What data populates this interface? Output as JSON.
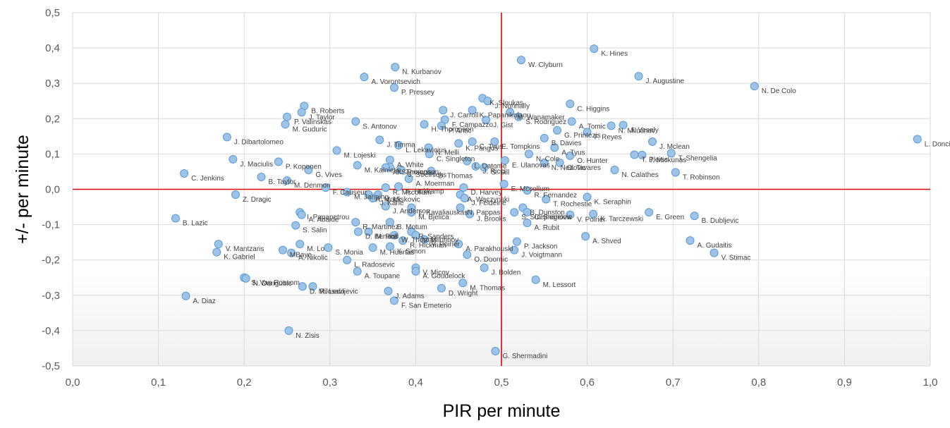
{
  "chart_data": {
    "type": "scatter",
    "title": "",
    "xlabel": "PIR per minute",
    "ylabel": "+/- per minute",
    "xlim": [
      0,
      1
    ],
    "ylim": [
      -0.5,
      0.5
    ],
    "x_ticks": [
      "0,0",
      "0,1",
      "0,2",
      "0,3",
      "0,4",
      "0,5",
      "0,6",
      "0,7",
      "0,8",
      "0,9",
      "1,0"
    ],
    "y_ticks": [
      "0,5",
      "0,4",
      "0,3",
      "0,2",
      "0,1",
      "0,0",
      "-0,1",
      "-0,2",
      "-0,3",
      "-0,4",
      "-0,5"
    ],
    "grid": true,
    "reference_lines": {
      "x": 0.5,
      "y": 0.0,
      "color": "#e00000"
    },
    "colors": {
      "marker_fill": "#9dc3e6",
      "marker_stroke": "#5b9bd5",
      "grid": "#d9d9d9",
      "label": "#404040",
      "lower_band": "#f2f2f2"
    },
    "points": [
      {
        "label": "K. Hines",
        "x": 0.608,
        "y": 0.398
      },
      {
        "label": "W. Clyburn",
        "x": 0.523,
        "y": 0.366
      },
      {
        "label": "N. Kurbanov",
        "x": 0.376,
        "y": 0.346
      },
      {
        "label": "A. Vorontsevich",
        "x": 0.34,
        "y": 0.318
      },
      {
        "label": "J. Augustine",
        "x": 0.66,
        "y": 0.32
      },
      {
        "label": "N. De Colo",
        "x": 0.795,
        "y": 0.292
      },
      {
        "label": "P. Pressey",
        "x": 0.375,
        "y": 0.288
      },
      {
        "label": "K. Sloukas",
        "x": 0.478,
        "y": 0.258
      },
      {
        "label": "J. Nunnally",
        "x": 0.484,
        "y": 0.25
      },
      {
        "label": "C. Higgins",
        "x": 0.58,
        "y": 0.242
      },
      {
        "label": "B. Roberts",
        "x": 0.27,
        "y": 0.236
      },
      {
        "label": "J. Carroll",
        "x": 0.432,
        "y": 0.224
      },
      {
        "label": "K. Papanikolaou",
        "x": 0.466,
        "y": 0.224
      },
      {
        "label": "P. Valinskas",
        "x": 0.25,
        "y": 0.205
      },
      {
        "label": "J. Taylor",
        "x": 0.267,
        "y": 0.218
      },
      {
        "label": "M. Wanamaker",
        "x": 0.51,
        "y": 0.218
      },
      {
        "label": "S. Rodriguez",
        "x": 0.52,
        "y": 0.205
      },
      {
        "label": "F. Campazzo",
        "x": 0.434,
        "y": 0.197
      },
      {
        "label": "J. Gist",
        "x": 0.482,
        "y": 0.196
      },
      {
        "label": "A. Tomic",
        "x": 0.582,
        "y": 0.192
      },
      {
        "label": "S. Antonov",
        "x": 0.33,
        "y": 0.192
      },
      {
        "label": "M. Guduric",
        "x": 0.248,
        "y": 0.184
      },
      {
        "label": "P. Antic",
        "x": 0.43,
        "y": 0.18
      },
      {
        "label": "N. Milutinov",
        "x": 0.628,
        "y": 0.18
      },
      {
        "label": "J. Vesely",
        "x": 0.642,
        "y": 0.182
      },
      {
        "label": "H. Thompson",
        "x": 0.41,
        "y": 0.184
      },
      {
        "label": "G. Printezis",
        "x": 0.565,
        "y": 0.167
      },
      {
        "label": "F. Reyes",
        "x": 0.6,
        "y": 0.162
      },
      {
        "label": "J. Dibartolomeo",
        "x": 0.18,
        "y": 0.148
      },
      {
        "label": "J. Timma",
        "x": 0.358,
        "y": 0.14
      },
      {
        "label": "B. Davies",
        "x": 0.55,
        "y": 0.145
      },
      {
        "label": "J. Mclean",
        "x": 0.676,
        "y": 0.135
      },
      {
        "label": "L. Doncic",
        "x": 0.985,
        "y": 0.142
      },
      {
        "label": "C. Tyus",
        "x": 0.466,
        "y": 0.135
      },
      {
        "label": "E. Tompkins",
        "x": 0.492,
        "y": 0.135
      },
      {
        "label": "K. Pangos",
        "x": 0.45,
        "y": 0.13
      },
      {
        "label": "L. Lekavicius",
        "x": 0.38,
        "y": 0.125
      },
      {
        "label": "N. Melli",
        "x": 0.415,
        "y": 0.118
      },
      {
        "label": "A. Tyus",
        "x": 0.562,
        "y": 0.118
      },
      {
        "label": "M. Lojeski",
        "x": 0.308,
        "y": 0.11
      },
      {
        "label": "C. Singleton",
        "x": 0.416,
        "y": 0.1
      },
      {
        "label": "N. Cole",
        "x": 0.532,
        "y": 0.1
      },
      {
        "label": "O. Hunter",
        "x": 0.58,
        "y": 0.095
      },
      {
        "label": "T. Pleiss",
        "x": 0.655,
        "y": 0.098
      },
      {
        "label": "J. Mickunas",
        "x": 0.664,
        "y": 0.097
      },
      {
        "label": "T. Shengelia",
        "x": 0.698,
        "y": 0.102
      },
      {
        "label": "J. Maciulis",
        "x": 0.187,
        "y": 0.085
      },
      {
        "label": "A. White",
        "x": 0.37,
        "y": 0.083
      },
      {
        "label": "L. Datome",
        "x": 0.46,
        "y": 0.08
      },
      {
        "label": "E. Ulanovas",
        "x": 0.504,
        "y": 0.082
      },
      {
        "label": "N. Nedovic",
        "x": 0.55,
        "y": 0.075
      },
      {
        "label": "O. Tavares",
        "x": 0.568,
        "y": 0.075
      },
      {
        "label": "P. Koponen",
        "x": 0.24,
        "y": 0.078
      },
      {
        "label": "K. Thompson",
        "x": 0.37,
        "y": 0.063
      },
      {
        "label": "A. Samsonov",
        "x": 0.365,
        "y": 0.062
      },
      {
        "label": "J. Ricci",
        "x": 0.47,
        "y": 0.065
      },
      {
        "label": "S. Sill",
        "x": 0.48,
        "y": 0.062
      },
      {
        "label": "G. Vives",
        "x": 0.275,
        "y": 0.055
      },
      {
        "label": "M. Kalnietis",
        "x": 0.332,
        "y": 0.068
      },
      {
        "label": "J. Strelnieks",
        "x": 0.383,
        "y": 0.055
      },
      {
        "label": "D. Thomas",
        "x": 0.418,
        "y": 0.052
      },
      {
        "label": "N. Calathes",
        "x": 0.632,
        "y": 0.055
      },
      {
        "label": "T. Robinson",
        "x": 0.703,
        "y": 0.048
      },
      {
        "label": "C. Jenkins",
        "x": 0.13,
        "y": 0.045
      },
      {
        "label": "B. Taylor",
        "x": 0.22,
        "y": 0.035
      },
      {
        "label": "A. Moerman",
        "x": 0.392,
        "y": 0.03
      },
      {
        "label": "M. Denmon",
        "x": 0.25,
        "y": 0.025
      },
      {
        "label": "F. Causeur",
        "x": 0.295,
        "y": 0.005
      },
      {
        "label": "R. Mccollum",
        "x": 0.365,
        "y": 0.005
      },
      {
        "label": "A. Hukkamp",
        "x": 0.38,
        "y": 0.008
      },
      {
        "label": "D. Harvey",
        "x": 0.456,
        "y": 0.005
      },
      {
        "label": "E. Mccollum",
        "x": 0.503,
        "y": 0.015
      },
      {
        "label": "R. Fernandez",
        "x": 0.53,
        "y": -0.003
      },
      {
        "label": "Z. Dragic",
        "x": 0.19,
        "y": -0.015
      },
      {
        "label": "M. Janning",
        "x": 0.32,
        "y": -0.008
      },
      {
        "label": "A. Mock",
        "x": 0.345,
        "y": -0.015
      },
      {
        "label": "V. Miskovic",
        "x": 0.356,
        "y": -0.015
      },
      {
        "label": "J. Kane",
        "x": 0.35,
        "y": -0.025
      },
      {
        "label": "A. Waczynski",
        "x": 0.452,
        "y": -0.015
      },
      {
        "label": "J. Feldeine",
        "x": 0.457,
        "y": -0.025
      },
      {
        "label": "K. Seraphin",
        "x": 0.6,
        "y": -0.022
      },
      {
        "label": "T. Rochestie",
        "x": 0.552,
        "y": -0.028
      },
      {
        "label": "I. Papapetrou",
        "x": 0.265,
        "y": -0.065
      },
      {
        "label": "J. Anderson",
        "x": 0.365,
        "y": -0.048
      },
      {
        "label": "L. Kavaliauskas",
        "x": 0.395,
        "y": -0.052
      },
      {
        "label": "N. Pappas",
        "x": 0.452,
        "y": -0.052
      },
      {
        "label": "B. Dunston",
        "x": 0.525,
        "y": -0.052
      },
      {
        "label": "S. Sulejmanovic",
        "x": 0.515,
        "y": -0.065
      },
      {
        "label": "C. Siegelow",
        "x": 0.53,
        "y": -0.065
      },
      {
        "label": "E. Green",
        "x": 0.672,
        "y": -0.065
      },
      {
        "label": "B. Dubljevic",
        "x": 0.725,
        "y": -0.075
      },
      {
        "label": "B. Lazic",
        "x": 0.12,
        "y": -0.082
      },
      {
        "label": "A. Abalde",
        "x": 0.267,
        "y": -0.072
      },
      {
        "label": "R. Martinez",
        "x": 0.33,
        "y": -0.093
      },
      {
        "label": "M. Bjelica",
        "x": 0.395,
        "y": -0.065
      },
      {
        "label": "J. Brooks",
        "x": 0.463,
        "y": -0.07
      },
      {
        "label": "V. Poirier",
        "x": 0.58,
        "y": -0.072
      },
      {
        "label": "K. Tarczewski",
        "x": 0.607,
        "y": -0.07
      },
      {
        "label": "B. Motum",
        "x": 0.37,
        "y": -0.093
      },
      {
        "label": "A. Rubit",
        "x": 0.53,
        "y": -0.095
      },
      {
        "label": "S. Salin",
        "x": 0.26,
        "y": -0.102
      },
      {
        "label": "D. Bertans",
        "x": 0.333,
        "y": -0.12
      },
      {
        "label": "M. Roll",
        "x": 0.345,
        "y": -0.12
      },
      {
        "label": "R. Sanders",
        "x": 0.395,
        "y": -0.12
      },
      {
        "label": "W. Thomas",
        "x": 0.375,
        "y": -0.13
      },
      {
        "label": "V. Milutinov",
        "x": 0.4,
        "y": -0.13
      },
      {
        "label": "R. Hickman",
        "x": 0.385,
        "y": -0.145
      },
      {
        "label": "V. Poirier",
        "x": 0.41,
        "y": -0.142
      },
      {
        "label": "A. Shved",
        "x": 0.598,
        "y": -0.133
      },
      {
        "label": "V. Mantzaris",
        "x": 0.17,
        "y": -0.155
      },
      {
        "label": "MBaye",
        "x": 0.245,
        "y": -0.172
      },
      {
        "label": "M. Lo",
        "x": 0.265,
        "y": -0.155
      },
      {
        "label": "M. Huertas",
        "x": 0.35,
        "y": -0.165
      },
      {
        "label": "K. Simon",
        "x": 0.37,
        "y": -0.162
      },
      {
        "label": "A. Parakhouski",
        "x": 0.45,
        "y": -0.155
      },
      {
        "label": "P. Jackson",
        "x": 0.518,
        "y": -0.148
      },
      {
        "label": "A. Gudaitis",
        "x": 0.72,
        "y": -0.145
      },
      {
        "label": "K. Gabriel",
        "x": 0.168,
        "y": -0.178
      },
      {
        "label": "J. Voigtmann",
        "x": 0.515,
        "y": -0.172
      },
      {
        "label": "V. Stimac",
        "x": 0.748,
        "y": -0.18
      },
      {
        "label": "A. Nikolic",
        "x": 0.255,
        "y": -0.18
      },
      {
        "label": "S. Monia",
        "x": 0.298,
        "y": -0.165
      },
      {
        "label": "L. Radosevic",
        "x": 0.32,
        "y": -0.2
      },
      {
        "label": "O. Doornic",
        "x": 0.46,
        "y": -0.185
      },
      {
        "label": "S. Van Rossom",
        "x": 0.2,
        "y": -0.25
      },
      {
        "label": "A. Toupane",
        "x": 0.332,
        "y": -0.232
      },
      {
        "label": "V. Micov",
        "x": 0.4,
        "y": -0.222
      },
      {
        "label": "J. Bolden",
        "x": 0.48,
        "y": -0.222
      },
      {
        "label": "A. Goudelock",
        "x": 0.4,
        "y": -0.232
      },
      {
        "label": "N. Dangubic",
        "x": 0.202,
        "y": -0.252
      },
      {
        "label": "M. Lessort",
        "x": 0.54,
        "y": -0.256
      },
      {
        "label": "M. Thomas",
        "x": 0.455,
        "y": -0.265
      },
      {
        "label": "D. Milosavljevic",
        "x": 0.268,
        "y": -0.275
      },
      {
        "label": "R. Ledo",
        "x": 0.28,
        "y": -0.275
      },
      {
        "label": "J. Adams",
        "x": 0.368,
        "y": -0.288
      },
      {
        "label": "D. Wright",
        "x": 0.43,
        "y": -0.28
      },
      {
        "label": "A. Diaz",
        "x": 0.132,
        "y": -0.302
      },
      {
        "label": "F. San Emeterio",
        "x": 0.375,
        "y": -0.315
      },
      {
        "label": "N. Zisis",
        "x": 0.252,
        "y": -0.4
      },
      {
        "label": "G. Shermadini",
        "x": 0.493,
        "y": -0.458
      }
    ]
  }
}
